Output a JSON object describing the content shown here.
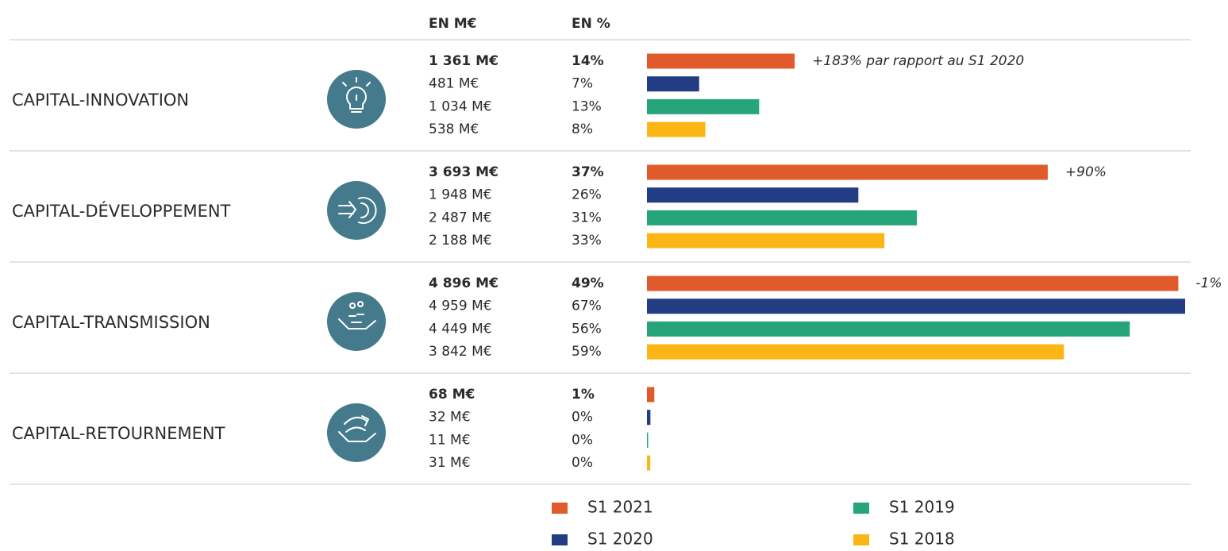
{
  "chart_data": {
    "type": "bar",
    "orientation": "horizontal",
    "column_headers": [
      "EN M€",
      "EN %"
    ],
    "categories": [
      "CAPITAL-INNOVATION",
      "CAPITAL-DÉVELOPPEMENT",
      "CAPITAL-TRANSMISSION",
      "CAPITAL-RETOURNEMENT"
    ],
    "series": [
      {
        "name": "S1 2021",
        "color": "#e05a2b",
        "values": [
          1361,
          3693,
          4896,
          68
        ],
        "value_labels": [
          "1 361 M€",
          "3 693 M€",
          "4 896 M€",
          "68 M€"
        ],
        "share_labels": [
          "14%",
          "37%",
          "49%",
          "1%"
        ]
      },
      {
        "name": "S1 2020",
        "color": "#233d85",
        "values": [
          481,
          1948,
          4959,
          32
        ],
        "value_labels": [
          "481 M€",
          "1 948 M€",
          "4 959 M€",
          "32 M€"
        ],
        "share_labels": [
          "7%",
          "26%",
          "67%",
          "0%"
        ]
      },
      {
        "name": "S1 2019",
        "color": "#26a57a",
        "values": [
          1034,
          2487,
          4449,
          11
        ],
        "value_labels": [
          "1 034 M€",
          "2 487 M€",
          "4 449 M€",
          "11 M€"
        ],
        "share_labels": [
          "13%",
          "31%",
          "56%",
          "0%"
        ]
      },
      {
        "name": "S1 2018",
        "color": "#fbb615",
        "values": [
          538,
          2188,
          3842,
          31
        ],
        "value_labels": [
          "538 M€",
          "2 188 M€",
          "3 842 M€",
          "31 M€"
        ],
        "share_labels": [
          "8%",
          "33%",
          "59%",
          "0%"
        ]
      }
    ],
    "annotations": [
      "+183% par rapport au S1 2020",
      "+90%",
      "-1%",
      null
    ]
  }
}
